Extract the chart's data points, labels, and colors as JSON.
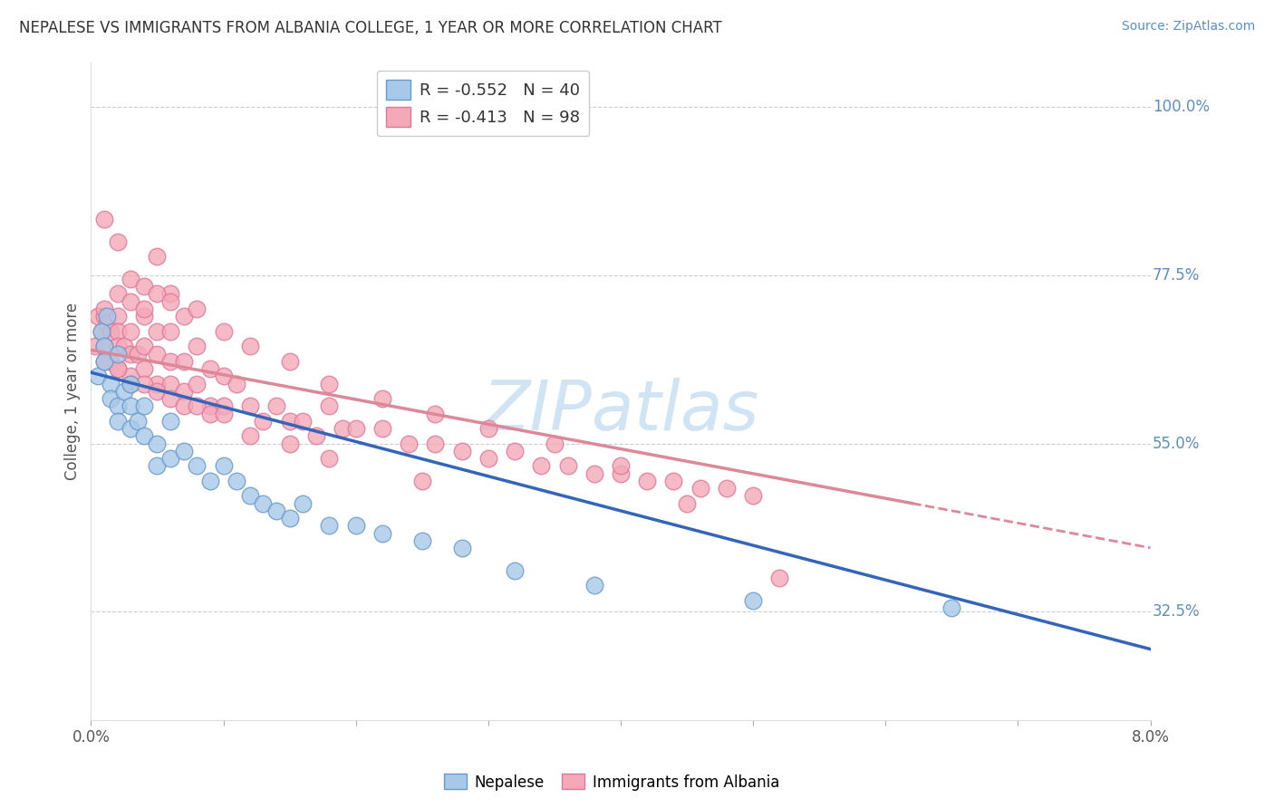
{
  "title": "NEPALESE VS IMMIGRANTS FROM ALBANIA COLLEGE, 1 YEAR OR MORE CORRELATION CHART",
  "source": "Source: ZipAtlas.com",
  "ylabel": "College, 1 year or more",
  "xmin": 0.0,
  "xmax": 0.08,
  "ymin": 0.18,
  "ymax": 1.06,
  "yticks": [
    0.325,
    0.55,
    0.775,
    1.0
  ],
  "ytick_labels": [
    "32.5%",
    "55.0%",
    "77.5%",
    "100.0%"
  ],
  "nepalese_color": "#a8c8e8",
  "albania_color": "#f4a8b8",
  "nepalese_edge": "#6699cc",
  "albania_edge": "#dd7799",
  "trend_nepalese_color": "#3366bb",
  "trend_albania_color": "#dd8899",
  "watermark_color": "#d0e4f4",
  "watermark": "ZIPatlas",
  "nepalese_x": [
    0.0005,
    0.0008,
    0.001,
    0.001,
    0.0012,
    0.0015,
    0.0015,
    0.002,
    0.002,
    0.002,
    0.0025,
    0.003,
    0.003,
    0.003,
    0.0035,
    0.004,
    0.004,
    0.005,
    0.005,
    0.006,
    0.006,
    0.007,
    0.008,
    0.009,
    0.01,
    0.011,
    0.012,
    0.013,
    0.014,
    0.015,
    0.016,
    0.018,
    0.02,
    0.022,
    0.025,
    0.028,
    0.032,
    0.038,
    0.05,
    0.065
  ],
  "nepalese_y": [
    0.64,
    0.7,
    0.68,
    0.66,
    0.72,
    0.63,
    0.61,
    0.67,
    0.6,
    0.58,
    0.62,
    0.6,
    0.57,
    0.63,
    0.58,
    0.6,
    0.56,
    0.55,
    0.52,
    0.58,
    0.53,
    0.54,
    0.52,
    0.5,
    0.52,
    0.5,
    0.48,
    0.47,
    0.46,
    0.45,
    0.47,
    0.44,
    0.44,
    0.43,
    0.42,
    0.41,
    0.38,
    0.36,
    0.34,
    0.33
  ],
  "albania_x": [
    0.0003,
    0.0005,
    0.0008,
    0.001,
    0.001,
    0.001,
    0.0012,
    0.0015,
    0.0015,
    0.002,
    0.002,
    0.002,
    0.002,
    0.0025,
    0.003,
    0.003,
    0.003,
    0.0035,
    0.004,
    0.004,
    0.004,
    0.005,
    0.005,
    0.005,
    0.006,
    0.006,
    0.006,
    0.007,
    0.007,
    0.008,
    0.008,
    0.009,
    0.009,
    0.01,
    0.01,
    0.011,
    0.012,
    0.013,
    0.014,
    0.015,
    0.016,
    0.017,
    0.018,
    0.019,
    0.02,
    0.022,
    0.024,
    0.026,
    0.028,
    0.03,
    0.032,
    0.034,
    0.036,
    0.038,
    0.04,
    0.042,
    0.044,
    0.046,
    0.048,
    0.05,
    0.002,
    0.003,
    0.004,
    0.005,
    0.006,
    0.007,
    0.001,
    0.002,
    0.003,
    0.004,
    0.005,
    0.006,
    0.008,
    0.01,
    0.012,
    0.015,
    0.018,
    0.022,
    0.026,
    0.03,
    0.035,
    0.04,
    0.045,
    0.052,
    0.001,
    0.002,
    0.003,
    0.004,
    0.005,
    0.006,
    0.007,
    0.008,
    0.009,
    0.01,
    0.012,
    0.015,
    0.018,
    0.025
  ],
  "albania_y": [
    0.68,
    0.72,
    0.7,
    0.72,
    0.68,
    0.73,
    0.71,
    0.7,
    0.66,
    0.72,
    0.7,
    0.68,
    0.65,
    0.68,
    0.7,
    0.67,
    0.64,
    0.67,
    0.68,
    0.65,
    0.72,
    0.67,
    0.63,
    0.7,
    0.66,
    0.7,
    0.63,
    0.66,
    0.62,
    0.68,
    0.63,
    0.65,
    0.6,
    0.64,
    0.6,
    0.63,
    0.6,
    0.58,
    0.6,
    0.58,
    0.58,
    0.56,
    0.6,
    0.57,
    0.57,
    0.57,
    0.55,
    0.55,
    0.54,
    0.53,
    0.54,
    0.52,
    0.52,
    0.51,
    0.51,
    0.5,
    0.5,
    0.49,
    0.49,
    0.48,
    0.75,
    0.74,
    0.73,
    0.8,
    0.75,
    0.72,
    0.85,
    0.82,
    0.77,
    0.76,
    0.75,
    0.74,
    0.73,
    0.7,
    0.68,
    0.66,
    0.63,
    0.61,
    0.59,
    0.57,
    0.55,
    0.52,
    0.47,
    0.37,
    0.66,
    0.65,
    0.63,
    0.63,
    0.62,
    0.61,
    0.6,
    0.6,
    0.59,
    0.59,
    0.56,
    0.55,
    0.53,
    0.5
  ]
}
